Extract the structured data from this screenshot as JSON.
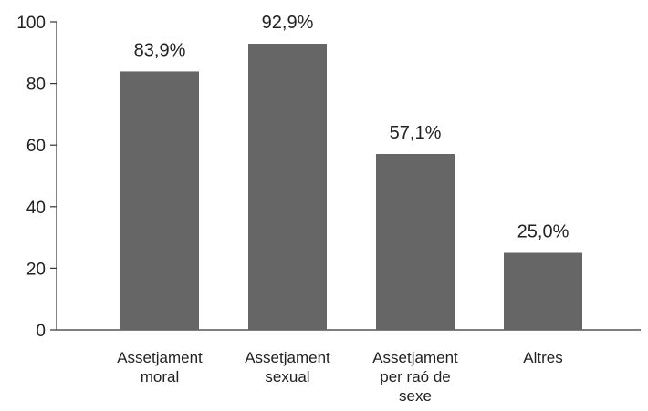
{
  "chart_data": {
    "type": "bar",
    "categories": [
      [
        "Assetjament",
        "moral"
      ],
      [
        "Assetjament",
        "sexual"
      ],
      [
        "Assetjament",
        "per raó de",
        "sexe"
      ],
      [
        "Altres"
      ]
    ],
    "values": [
      83.9,
      92.9,
      57.1,
      25.0
    ],
    "data_labels": [
      "83,9%",
      "92,9%",
      "57,1%",
      "25,0%"
    ],
    "ylim": [
      0,
      100
    ],
    "yticks": [
      "0",
      "20",
      "40",
      "60",
      "80",
      "100"
    ],
    "grid": false,
    "bar_color": "#666666",
    "axis_color": "#333333"
  }
}
